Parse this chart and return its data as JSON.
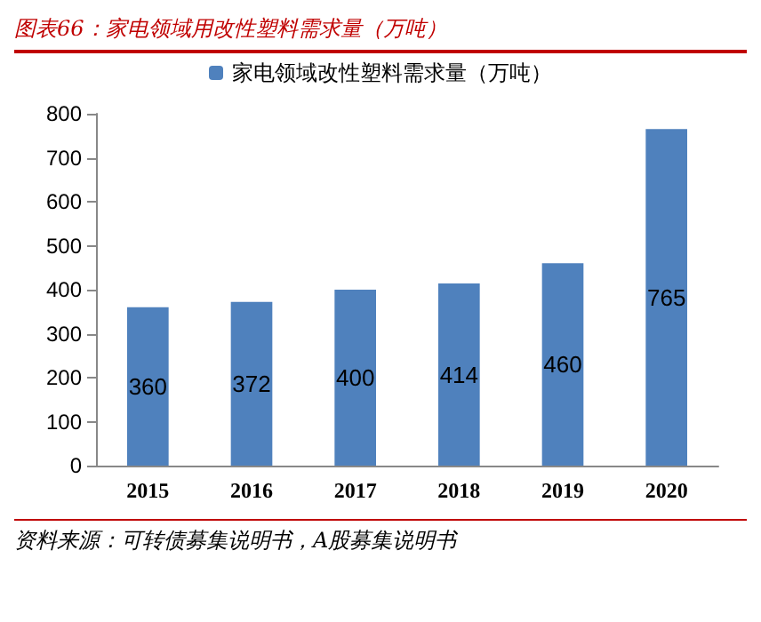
{
  "chart_data": {
    "type": "bar",
    "title": "图表66：家电领域用改性塑料需求量（万吨）",
    "categories": [
      "2015",
      "2016",
      "2017",
      "2018",
      "2019",
      "2020"
    ],
    "series": [
      {
        "name": "家电领域改性塑料需求量（万吨）",
        "color": "#4f81bd",
        "values": [
          360,
          372,
          400,
          414,
          460,
          765
        ]
      }
    ],
    "ylim": [
      0,
      800
    ],
    "yticks": [
      0,
      100,
      200,
      300,
      400,
      500,
      600,
      700,
      800
    ],
    "grid": false,
    "legend": "top",
    "data_labels": true,
    "annotations": [
      "资料来源：可转债募集说明书，A股募集说明书"
    ]
  }
}
